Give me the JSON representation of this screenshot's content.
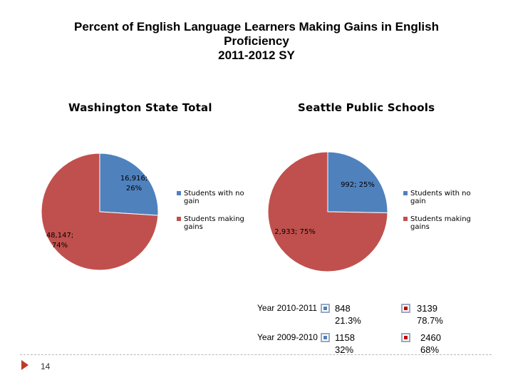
{
  "title_lines": [
    "Percent of English Language Learners Making Gains in English",
    "Proficiency",
    "2011-2012 SY"
  ],
  "chart_data": [
    {
      "type": "pie",
      "title": "Washington State Total",
      "labels": [
        "Students with no gain",
        "Students making gains"
      ],
      "values": [
        16916,
        48147
      ],
      "percents": [
        26,
        74
      ],
      "data_labels": [
        "16,916;\n26%",
        "48,147;\n74%"
      ],
      "colors": [
        "#4f81bd",
        "#c0504d"
      ],
      "legend_position": "right"
    },
    {
      "type": "pie",
      "title": "Seattle Public Schools",
      "labels": [
        "Students with no gain",
        "Students making gains"
      ],
      "values": [
        992,
        2933
      ],
      "percents": [
        25,
        75
      ],
      "data_labels": [
        "992; 25%",
        "2,933; 75%"
      ],
      "colors": [
        "#4f81bd",
        "#c0504d"
      ],
      "legend_position": "right"
    }
  ],
  "year_table": {
    "rows": [
      {
        "year": "Year 2010-2011",
        "no_gain": "848",
        "no_gain_pct": "21.3%",
        "gains": "3139",
        "gains_pct": "78.7%"
      },
      {
        "year": "Year 2009-2010",
        "no_gain": "1158",
        "no_gain_pct": "32%",
        "gains": "2460",
        "gains_pct": "68%"
      }
    ],
    "colors": {
      "no_gain": "#4f81bd",
      "gains": "#c00000"
    }
  },
  "page_number": "14"
}
